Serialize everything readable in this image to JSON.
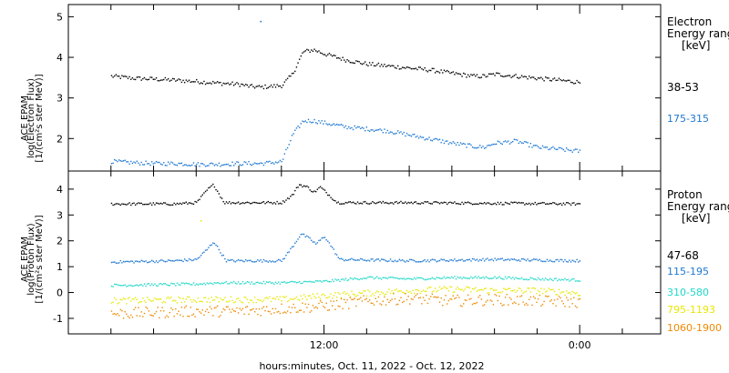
{
  "chart_data": [
    {
      "type": "scatter",
      "panel": "electron",
      "ylabel_lines": [
        "ACE EPAM",
        "log(Electron Flux)",
        "[1/(cm²s ster MeV)]"
      ],
      "ylim": [
        1.2,
        5.3
      ],
      "yticks": [
        2,
        3,
        4,
        5
      ],
      "legend_title": [
        "Electron",
        "Energy range",
        "[keV]"
      ],
      "legend_entries": [
        {
          "label": "38-53",
          "color": "#000000"
        },
        {
          "label": "175-315",
          "color": "#1e78d2"
        }
      ],
      "series": [
        {
          "name": "38-53",
          "color": "#000000",
          "points": [
            [
              0,
              3.55
            ],
            [
              1,
              3.5
            ],
            [
              2,
              3.48
            ],
            [
              3,
              3.45
            ],
            [
              4,
              3.42
            ],
            [
              5,
              3.38
            ],
            [
              6,
              3.35
            ],
            [
              6.5,
              3.3
            ],
            [
              7,
              3.28
            ],
            [
              7.5,
              3.3
            ],
            [
              8,
              3.32
            ],
            [
              8.5,
              3.6
            ],
            [
              9,
              4.15
            ],
            [
              9.5,
              4.2
            ],
            [
              10,
              4.1
            ],
            [
              11,
              3.95
            ],
            [
              12,
              3.85
            ],
            [
              13,
              3.8
            ],
            [
              14,
              3.75
            ],
            [
              15,
              3.7
            ],
            [
              16,
              3.62
            ],
            [
              17,
              3.55
            ],
            [
              17.5,
              3.55
            ],
            [
              18,
              3.6
            ],
            [
              19,
              3.55
            ],
            [
              20,
              3.5
            ],
            [
              21,
              3.45
            ],
            [
              22,
              3.4
            ]
          ]
        },
        {
          "name": "175-315",
          "color": "#1e78d2",
          "points": [
            [
              0,
              1.45
            ],
            [
              1,
              1.42
            ],
            [
              2,
              1.4
            ],
            [
              3,
              1.4
            ],
            [
              4,
              1.38
            ],
            [
              5,
              1.38
            ],
            [
              6,
              1.4
            ],
            [
              7,
              1.4
            ],
            [
              7.5,
              1.42
            ],
            [
              8,
              1.45
            ],
            [
              8.5,
              2.1
            ],
            [
              9,
              2.45
            ],
            [
              9.5,
              2.45
            ],
            [
              10,
              2.4
            ],
            [
              11,
              2.3
            ],
            [
              12,
              2.25
            ],
            [
              13,
              2.2
            ],
            [
              14,
              2.1
            ],
            [
              15,
              2.0
            ],
            [
              16,
              1.9
            ],
            [
              17,
              1.82
            ],
            [
              17.5,
              1.8
            ],
            [
              18,
              1.9
            ],
            [
              19,
              1.95
            ],
            [
              20,
              1.8
            ],
            [
              21,
              1.75
            ],
            [
              22,
              1.7
            ]
          ]
        }
      ],
      "outliers": [
        {
          "x": 7.0,
          "y": 4.9,
          "color": "#1e78d2"
        }
      ]
    },
    {
      "type": "scatter",
      "panel": "proton",
      "ylabel_lines": [
        "ACE EPAM",
        "log(Proton Flux)",
        "[1/(cm²s ster MeV)]"
      ],
      "ylim": [
        -1.6,
        4.7
      ],
      "yticks": [
        -1,
        0,
        1,
        2,
        3,
        4
      ],
      "legend_title": [
        "Proton",
        "Energy range",
        "[keV]"
      ],
      "legend_entries": [
        {
          "label": "47-68",
          "color": "#000000"
        },
        {
          "label": "115-195",
          "color": "#1e78d2"
        },
        {
          "label": "310-580",
          "color": "#20d8c8"
        },
        {
          "label": "795-1193",
          "color": "#e8e800"
        },
        {
          "label": "1060-1900",
          "color": "#ee8a00"
        }
      ],
      "series": [
        {
          "name": "47-68",
          "color": "#000000",
          "points": [
            [
              0,
              3.45
            ],
            [
              3,
              3.45
            ],
            [
              4,
              3.5
            ],
            [
              4.5,
              4.0
            ],
            [
              4.8,
              4.2
            ],
            [
              5.0,
              3.9
            ],
            [
              5.3,
              3.5
            ],
            [
              8,
              3.5
            ],
            [
              8.5,
              3.8
            ],
            [
              8.8,
              4.2
            ],
            [
              9.2,
              4.1
            ],
            [
              9.5,
              3.9
            ],
            [
              9.8,
              4.1
            ],
            [
              10.2,
              3.8
            ],
            [
              10.6,
              3.5
            ],
            [
              14,
              3.5
            ],
            [
              22,
              3.45
            ]
          ]
        },
        {
          "name": "115-195",
          "color": "#1e78d2",
          "points": [
            [
              0,
              1.2
            ],
            [
              3,
              1.25
            ],
            [
              4,
              1.3
            ],
            [
              4.5,
              1.7
            ],
            [
              4.8,
              2.0
            ],
            [
              5.1,
              1.6
            ],
            [
              5.4,
              1.25
            ],
            [
              8,
              1.25
            ],
            [
              8.5,
              1.8
            ],
            [
              8.9,
              2.3
            ],
            [
              9.3,
              2.1
            ],
            [
              9.6,
              1.9
            ],
            [
              10,
              2.2
            ],
            [
              10.4,
              1.7
            ],
            [
              10.7,
              1.3
            ],
            [
              14,
              1.25
            ],
            [
              18,
              1.3
            ],
            [
              22,
              1.25
            ]
          ]
        },
        {
          "name": "310-580",
          "color": "#20d8c8",
          "points": [
            [
              0,
              0.3
            ],
            [
              4,
              0.35
            ],
            [
              5,
              0.4
            ],
            [
              8,
              0.4
            ],
            [
              10,
              0.45
            ],
            [
              12,
              0.6
            ],
            [
              14,
              0.55
            ],
            [
              16,
              0.6
            ],
            [
              18,
              0.6
            ],
            [
              20,
              0.55
            ],
            [
              22,
              0.5
            ]
          ]
        },
        {
          "name": "795-1193",
          "color": "#e8e800",
          "points": [
            [
              0,
              -0.3
            ],
            [
              4,
              -0.25
            ],
            [
              8,
              -0.25
            ],
            [
              10,
              -0.1
            ],
            [
              12,
              0.0
            ],
            [
              14,
              0.1
            ],
            [
              16,
              0.15
            ],
            [
              18,
              0.1
            ],
            [
              20,
              0.1
            ],
            [
              22,
              0.0
            ]
          ]
        },
        {
          "name": "1060-1900",
          "color": "#ee8a00",
          "points": [
            [
              0,
              -0.8
            ],
            [
              2,
              -0.75
            ],
            [
              4,
              -0.7
            ],
            [
              6,
              -0.7
            ],
            [
              8,
              -0.6
            ],
            [
              10,
              -0.5
            ],
            [
              12,
              -0.3
            ],
            [
              14,
              -0.2
            ],
            [
              16,
              -0.3
            ],
            [
              18,
              -0.25
            ],
            [
              20,
              -0.3
            ],
            [
              22,
              -0.35
            ]
          ]
        }
      ],
      "outliers": [
        {
          "x": 4.2,
          "y": 2.8,
          "color": "#e8e800"
        }
      ]
    }
  ],
  "x_axis": {
    "label": "hours:minutes, Oct. 11, 2022 - Oct. 12, 2022",
    "xlim": [
      -2.0,
      25.8
    ],
    "ticks": [
      {
        "x": 10.0,
        "label": "12:00"
      },
      {
        "x": 22.0,
        "label": "0:00"
      }
    ],
    "minor_step": 2.0
  }
}
